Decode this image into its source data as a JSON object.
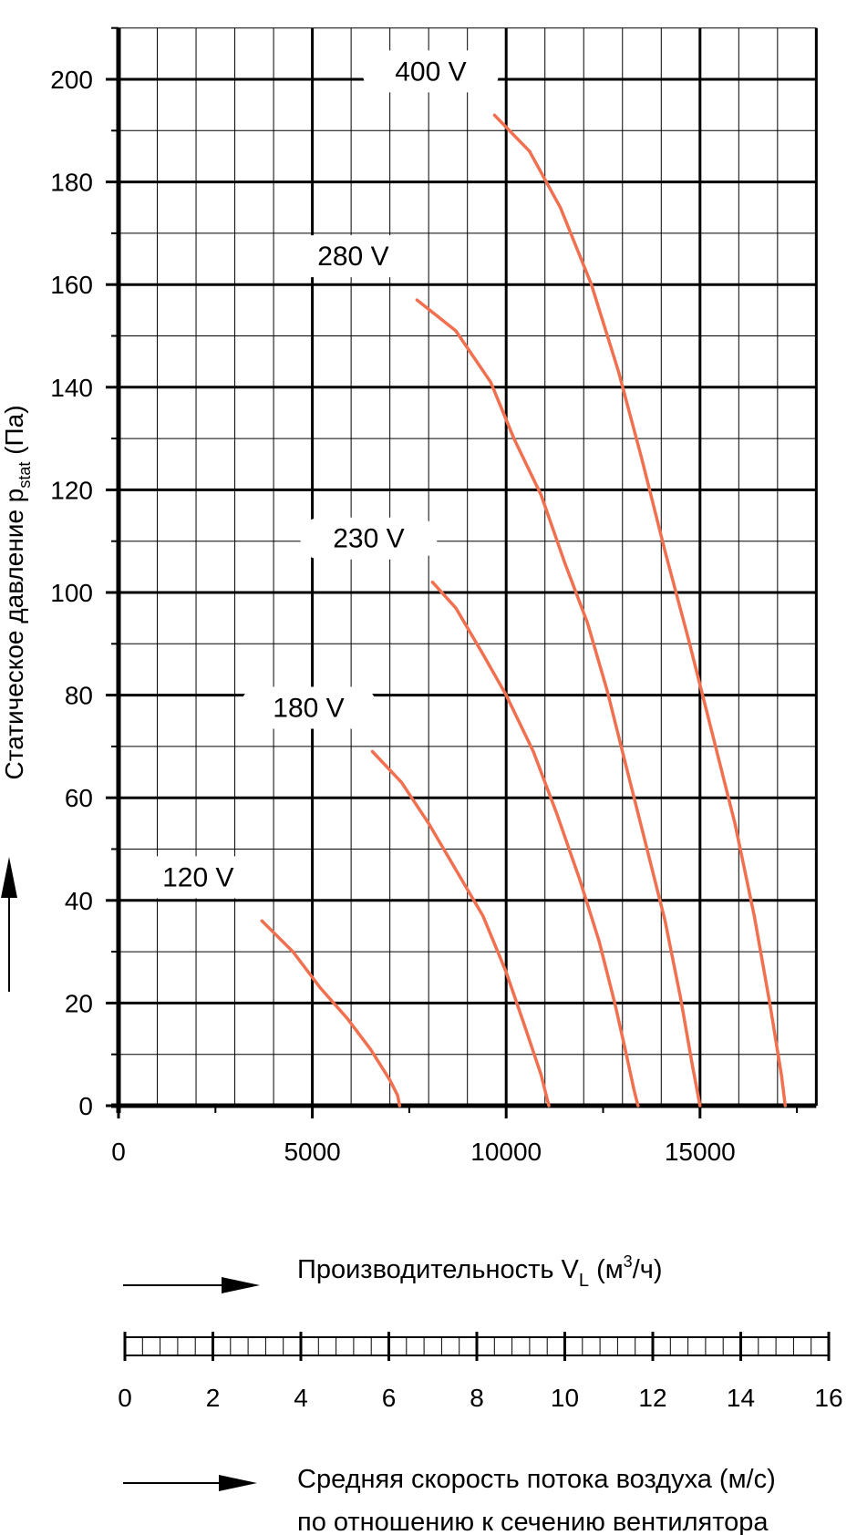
{
  "chart_data": {
    "type": "line",
    "ylabel_main": "Статическое давление p",
    "ylabel_sub": "stat",
    "ylabel_unit": " (Па)",
    "xlabel_main": "Производительность V",
    "xlabel_sub": "L",
    "xlabel_open": " (м",
    "xlabel_sup": "3",
    "xlabel_close": "/ч)",
    "speed_label_line1": "Средняя скорость потока воздуха (м/с)",
    "speed_label_line2": "по отношению к сечению вентилятора",
    "xlim": [
      0,
      18000
    ],
    "ylim": [
      0,
      210
    ],
    "x_ticks": [
      0,
      5000,
      10000,
      15000
    ],
    "y_ticks": [
      0,
      20,
      40,
      60,
      80,
      100,
      120,
      140,
      160,
      180,
      200
    ],
    "speed_range": [
      0,
      16
    ],
    "speed_ticks": [
      0,
      2,
      4,
      6,
      8,
      10,
      12,
      14,
      16
    ],
    "grid": true,
    "curve_color": "#f07050",
    "series": [
      {
        "name": "120 V",
        "x": [
          3700,
          4500,
          5200,
          5900,
          6500,
          7000,
          7200,
          7250
        ],
        "y": [
          36,
          30,
          23,
          17,
          11,
          5,
          2,
          0
        ]
      },
      {
        "name": "180 V",
        "x": [
          6550,
          7300,
          8000,
          8700,
          9400,
          10000,
          10500,
          10900,
          11100
        ],
        "y": [
          69,
          63,
          55,
          46,
          37,
          26,
          15,
          6,
          0
        ]
      },
      {
        "name": "230 V",
        "x": [
          8100,
          8700,
          9400,
          10000,
          10700,
          11300,
          11900,
          12400,
          12800,
          13100,
          13300,
          13400
        ],
        "y": [
          102,
          97,
          88,
          80,
          69,
          57,
          44,
          32,
          20,
          10,
          3,
          0
        ]
      },
      {
        "name": "280 V",
        "x": [
          7700,
          8700,
          9600,
          10200,
          10900,
          11500,
          12100,
          12600,
          13100,
          13600,
          14100,
          14500,
          14800,
          15000
        ],
        "y": [
          157,
          151,
          141,
          130,
          119,
          106,
          94,
          81,
          66,
          51,
          36,
          21,
          8,
          0
        ]
      },
      {
        "name": "400 V",
        "x": [
          9700,
          10600,
          11400,
          12200,
          12900,
          13500,
          14100,
          14700,
          15300,
          15900,
          16400,
          16800,
          17100,
          17200
        ],
        "y": [
          193,
          186,
          175,
          160,
          143,
          126,
          108,
          91,
          73,
          55,
          37,
          20,
          6,
          0
        ]
      }
    ]
  }
}
